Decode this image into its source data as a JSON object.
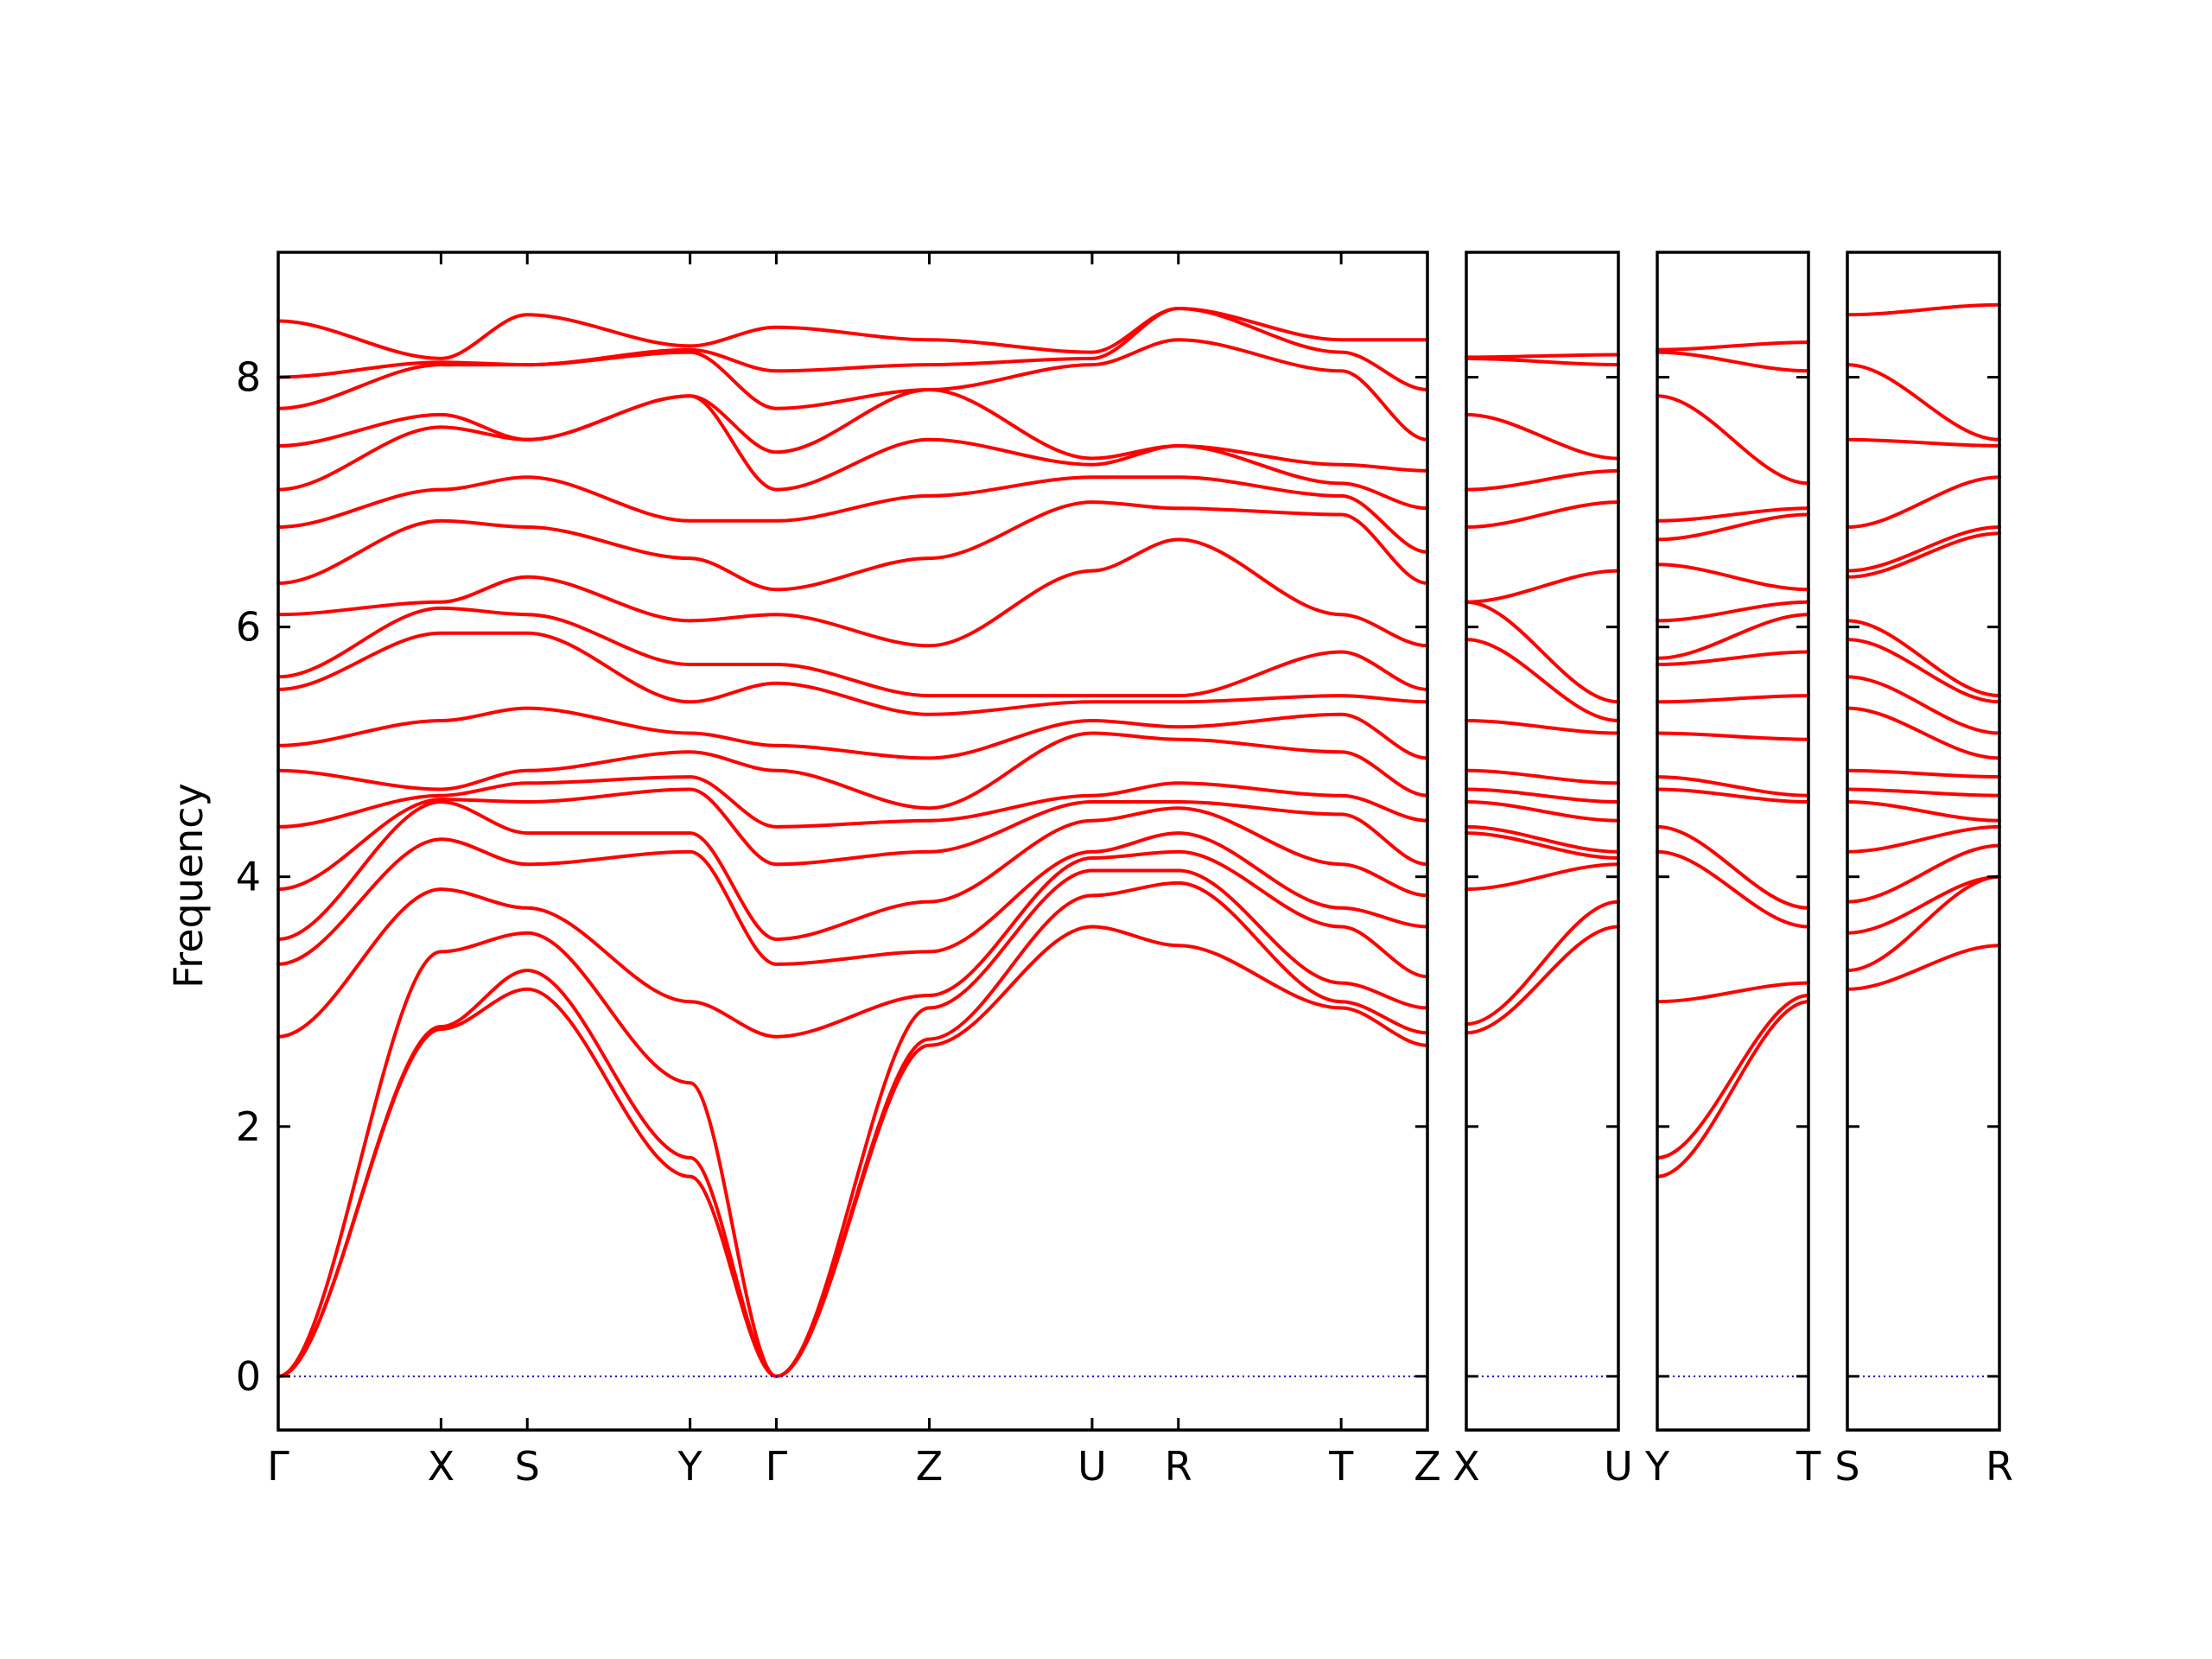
{
  "chart_data": {
    "type": "line",
    "title": "",
    "ylabel": "Frequency",
    "xlabel": "",
    "ylim": [
      -0.43,
      9.0
    ],
    "yticks": [
      0,
      2,
      4,
      6,
      8
    ],
    "grid": false,
    "colors": {
      "bands": "#ff0000",
      "zero_line": "#0000cc"
    },
    "panels": [
      {
        "labels": [
          "Γ",
          "X",
          "S",
          "Y",
          "Γ",
          "Z",
          "U",
          "R",
          "T",
          "Z"
        ],
        "label_positions": [
          0,
          1.0,
          1.53,
          2.53,
          3.06,
          4.0,
          5.0,
          5.53,
          6.53,
          7.06
        ],
        "band_endpoints": [
          [
            0.0,
            2.78,
            3.1,
            1.6,
            0.0,
            2.65,
            3.6,
            3.45,
            2.95,
            2.65
          ],
          [
            0.0,
            2.8,
            3.25,
            1.75,
            0.0,
            2.7,
            3.85,
            3.95,
            3.0,
            2.75
          ],
          [
            0.0,
            3.4,
            3.55,
            2.35,
            0.0,
            2.95,
            4.05,
            4.05,
            3.15,
            2.95
          ],
          [
            2.72,
            3.9,
            3.75,
            3.0,
            2.72,
            3.05,
            4.15,
            4.2,
            3.6,
            3.2
          ],
          [
            3.3,
            4.3,
            4.1,
            4.2,
            3.3,
            3.4,
            4.2,
            4.35,
            3.75,
            3.6
          ],
          [
            3.5,
            4.6,
            4.35,
            4.35,
            3.5,
            3.8,
            4.45,
            4.55,
            4.1,
            3.85
          ],
          [
            3.9,
            4.62,
            4.6,
            4.7,
            4.1,
            4.2,
            4.6,
            4.6,
            4.5,
            4.1
          ],
          [
            4.4,
            4.65,
            4.75,
            4.8,
            4.4,
            4.45,
            4.65,
            4.75,
            4.65,
            4.45
          ],
          [
            4.85,
            4.7,
            4.85,
            5.0,
            4.85,
            4.55,
            5.15,
            5.1,
            5.0,
            4.65
          ],
          [
            5.05,
            5.25,
            5.35,
            5.15,
            5.05,
            4.95,
            5.25,
            5.2,
            5.3,
            4.95
          ],
          [
            5.5,
            5.95,
            5.95,
            5.4,
            5.55,
            5.3,
            5.4,
            5.4,
            5.45,
            5.4
          ],
          [
            5.6,
            6.15,
            6.1,
            5.7,
            5.7,
            5.45,
            5.45,
            5.45,
            5.8,
            5.5
          ],
          [
            6.1,
            6.2,
            6.4,
            6.05,
            6.1,
            5.85,
            6.45,
            6.7,
            6.1,
            5.85
          ],
          [
            6.35,
            6.85,
            6.8,
            6.55,
            6.3,
            6.55,
            7.0,
            6.95,
            6.9,
            6.35
          ],
          [
            6.8,
            7.1,
            7.2,
            6.85,
            6.85,
            7.05,
            7.2,
            7.2,
            7.05,
            6.6
          ],
          [
            7.1,
            7.6,
            7.5,
            7.85,
            7.1,
            7.5,
            7.3,
            7.45,
            7.15,
            6.95
          ],
          [
            7.45,
            7.7,
            7.5,
            7.85,
            7.4,
            7.9,
            7.35,
            7.45,
            7.3,
            7.25
          ],
          [
            7.75,
            8.1,
            8.1,
            8.2,
            7.75,
            7.9,
            8.1,
            8.3,
            8.05,
            7.5
          ],
          [
            8.0,
            8.12,
            8.1,
            8.22,
            8.05,
            8.1,
            8.15,
            8.55,
            8.2,
            7.9
          ],
          [
            8.45,
            8.15,
            8.5,
            8.25,
            8.4,
            8.3,
            8.2,
            8.55,
            8.3,
            8.3
          ]
        ]
      },
      {
        "labels": [
          "X",
          "U"
        ],
        "label_positions": [
          0,
          1
        ],
        "band_endpoints": [
          [
            2.75,
            3.6
          ],
          [
            2.82,
            3.8
          ],
          [
            3.9,
            4.1
          ],
          [
            4.35,
            4.15
          ],
          [
            4.4,
            4.2
          ],
          [
            4.6,
            4.45
          ],
          [
            4.7,
            4.6
          ],
          [
            4.85,
            4.75
          ],
          [
            5.25,
            5.15
          ],
          [
            5.9,
            5.25
          ],
          [
            6.2,
            5.4
          ],
          [
            6.2,
            6.45
          ],
          [
            6.8,
            7.0
          ],
          [
            7.1,
            7.25
          ],
          [
            7.7,
            7.35
          ],
          [
            8.15,
            8.1
          ],
          [
            8.16,
            8.18
          ]
        ]
      },
      {
        "labels": [
          "Y",
          "T"
        ],
        "label_positions": [
          0,
          1
        ],
        "band_endpoints": [
          [
            1.6,
            3.0
          ],
          [
            1.75,
            3.05
          ],
          [
            3.0,
            3.15
          ],
          [
            4.2,
            3.6
          ],
          [
            4.4,
            3.75
          ],
          [
            4.7,
            4.6
          ],
          [
            4.8,
            4.65
          ],
          [
            5.15,
            5.1
          ],
          [
            5.4,
            5.45
          ],
          [
            5.7,
            5.8
          ],
          [
            5.75,
            6.1
          ],
          [
            6.05,
            6.2
          ],
          [
            6.5,
            6.3
          ],
          [
            6.7,
            6.9
          ],
          [
            6.85,
            6.95
          ],
          [
            7.85,
            7.15
          ],
          [
            8.2,
            8.05
          ],
          [
            8.22,
            8.28
          ]
        ]
      },
      {
        "labels": [
          "S",
          "R"
        ],
        "label_positions": [
          0,
          1
        ],
        "band_endpoints": [
          [
            3.1,
            3.45
          ],
          [
            3.25,
            4.0
          ],
          [
            3.55,
            4.0
          ],
          [
            3.8,
            4.25
          ],
          [
            4.2,
            4.4
          ],
          [
            4.6,
            4.45
          ],
          [
            4.7,
            4.65
          ],
          [
            4.85,
            4.8
          ],
          [
            5.35,
            4.95
          ],
          [
            5.6,
            5.15
          ],
          [
            5.9,
            5.4
          ],
          [
            6.05,
            5.45
          ],
          [
            6.4,
            6.75
          ],
          [
            6.45,
            6.8
          ],
          [
            6.8,
            7.2
          ],
          [
            7.5,
            7.45
          ],
          [
            8.1,
            7.5
          ],
          [
            8.5,
            8.58
          ]
        ]
      }
    ]
  }
}
